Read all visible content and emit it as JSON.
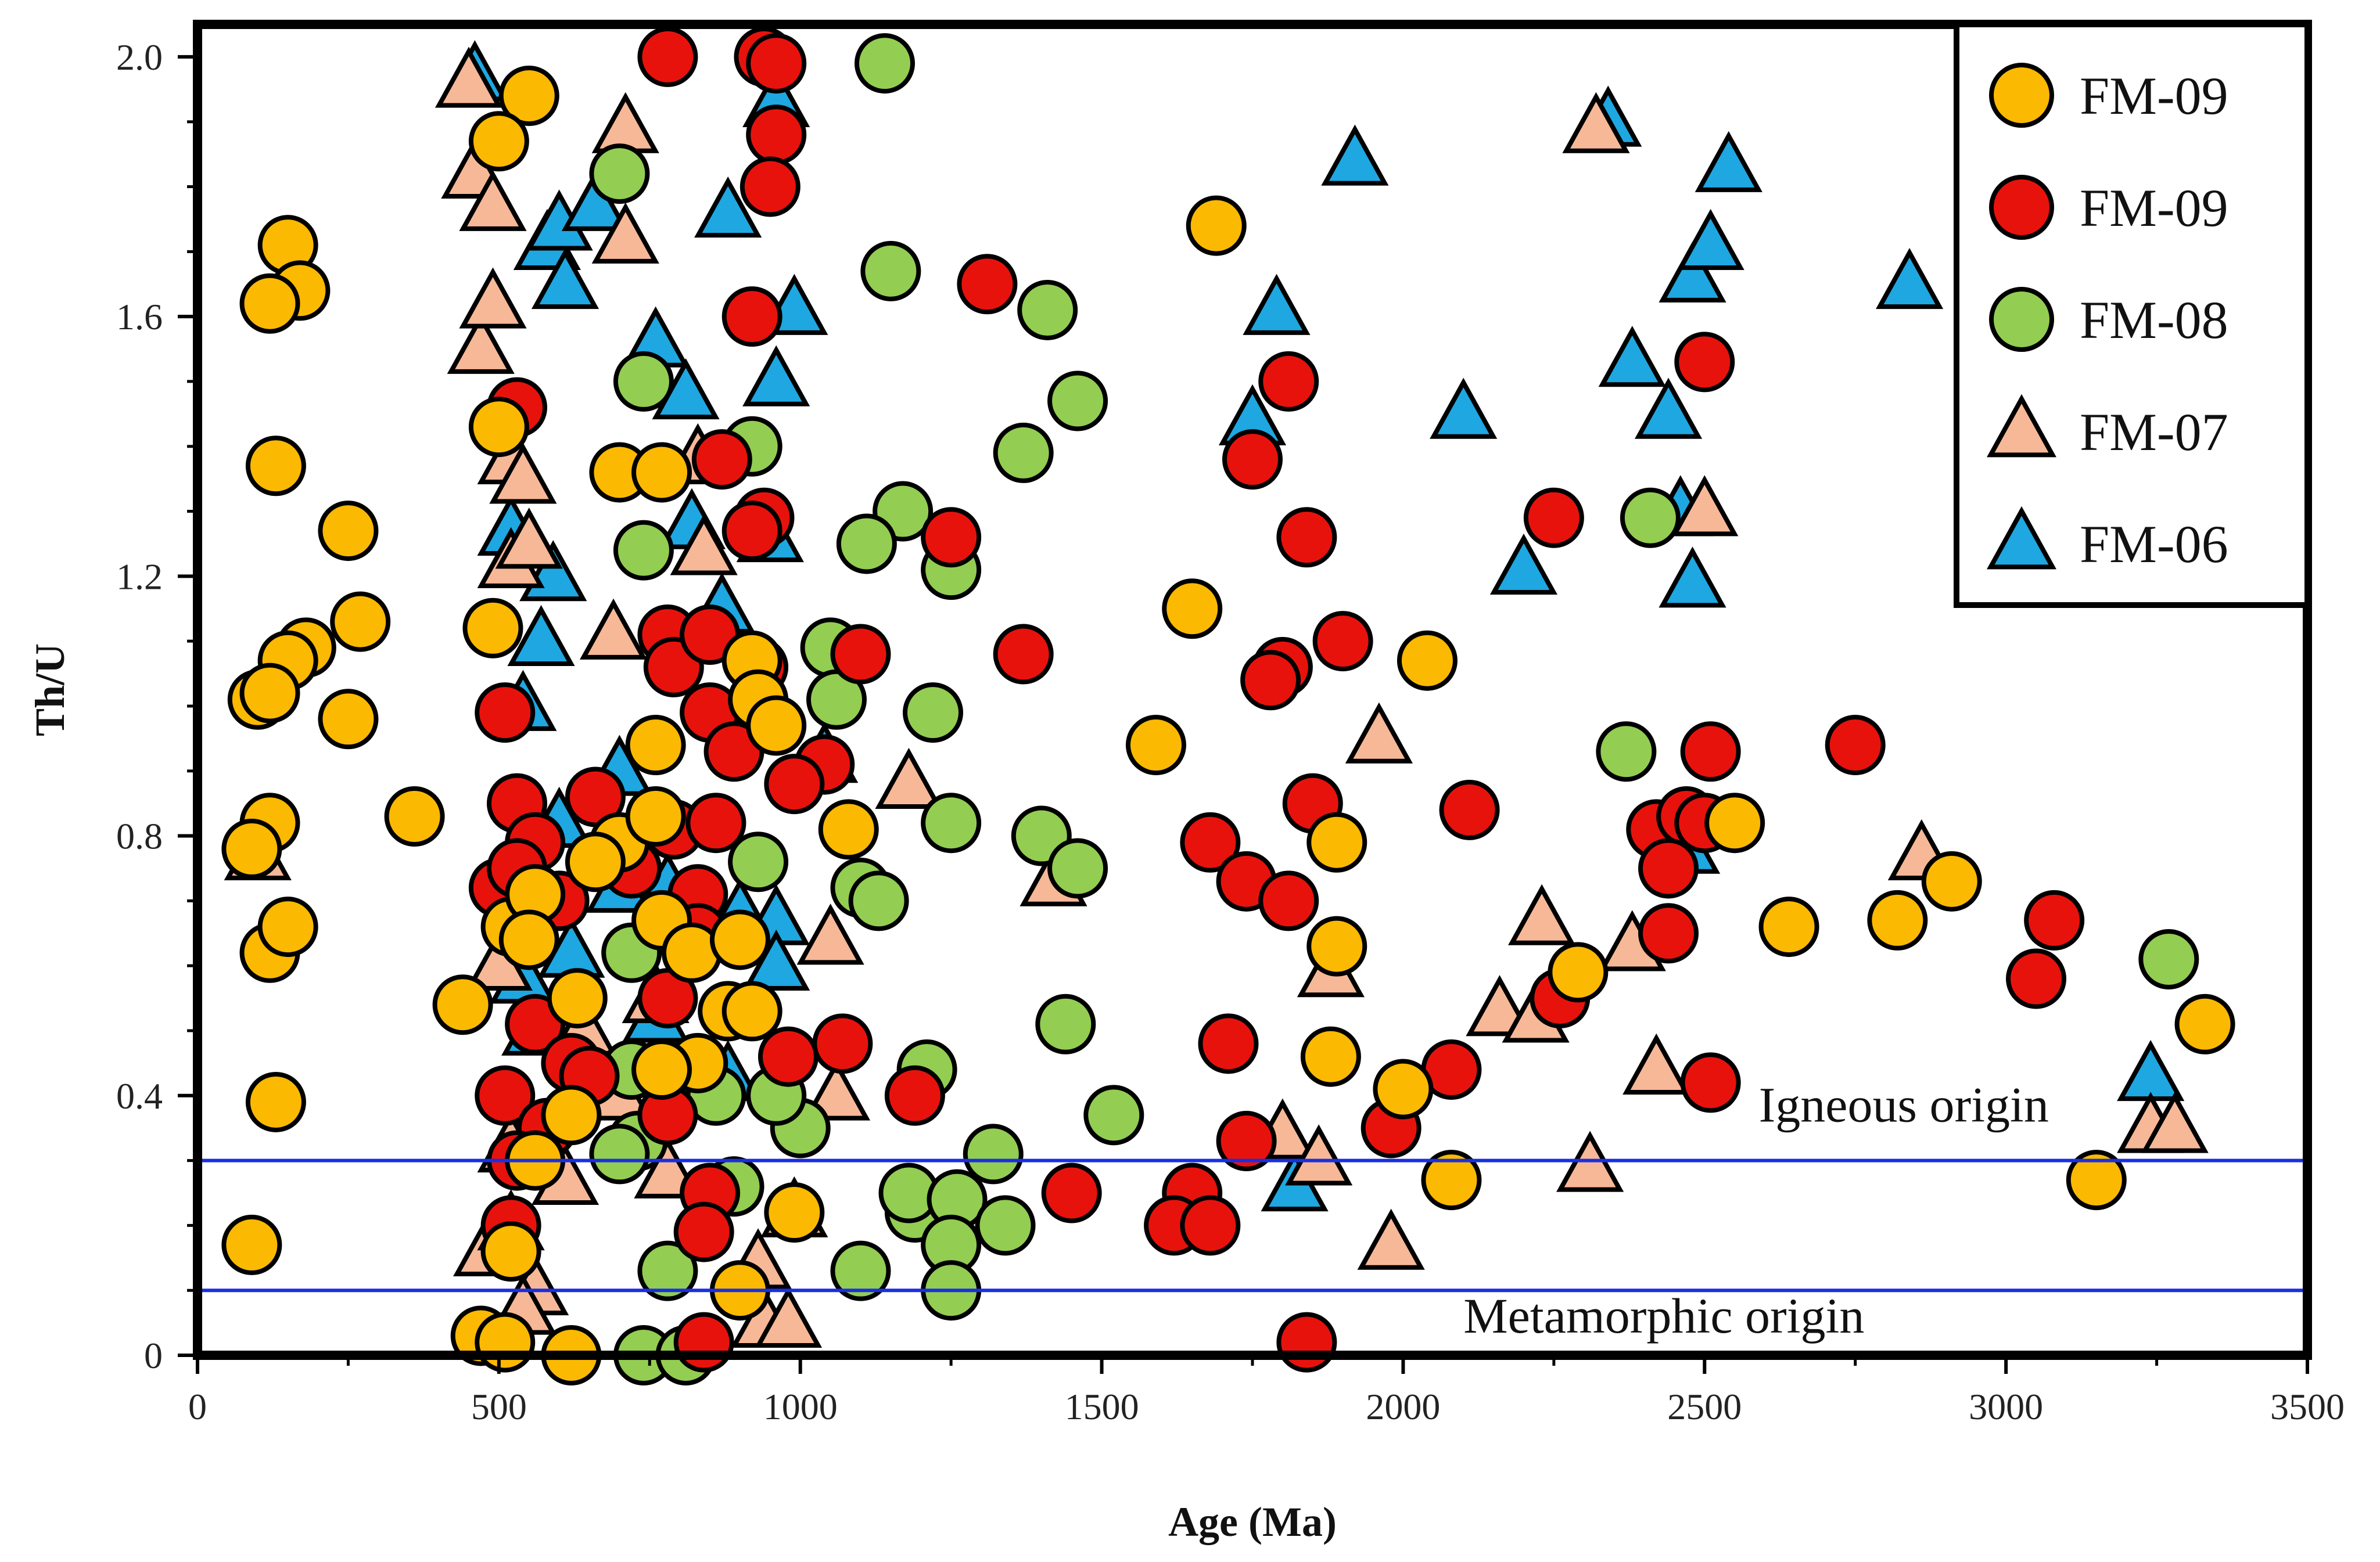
{
  "chart_data": {
    "type": "scatter",
    "title": "",
    "xlabel": "Age (Ma)",
    "ylabel": "Th/U",
    "xlim": [
      0,
      3500
    ],
    "ylim": [
      0,
      2.05
    ],
    "xticks": [
      0,
      500,
      1000,
      1500,
      2000,
      2500,
      3000,
      3500
    ],
    "xtick_labels": [
      "0",
      "500",
      "1000",
      "1500",
      "2000",
      "2500",
      "3000",
      "3500"
    ],
    "yticks": [
      0,
      0.4,
      0.8,
      1.2,
      1.6,
      2.0
    ],
    "ytick_labels": [
      "0",
      "0.4",
      "0.8",
      "1.2",
      "1.6",
      "2.0"
    ],
    "legend_position": "top-right",
    "reference_lines": [
      {
        "y": 0.3,
        "color": "#1a2fe0",
        "label": "Igneous origin"
      },
      {
        "y": 0.1,
        "color": "#1a2fe0",
        "label": "Metamorphic origin"
      }
    ],
    "series": [
      {
        "name": "FM-06",
        "marker": "triangle",
        "color": "#1ea7e1",
        "points": [
          [
            460,
            1.97
          ],
          [
            580,
            1.71
          ],
          [
            600,
            1.74
          ],
          [
            610,
            1.65
          ],
          [
            660,
            1.77
          ],
          [
            760,
            1.56
          ],
          [
            810,
            1.48
          ],
          [
            880,
            1.76
          ],
          [
            960,
            1.5
          ],
          [
            990,
            1.61
          ],
          [
            960,
            1.93
          ],
          [
            1750,
            1.44
          ],
          [
            1790,
            1.61
          ],
          [
            1920,
            1.84
          ],
          [
            2100,
            1.45
          ],
          [
            2200,
            1.21
          ],
          [
            2340,
            1.9
          ],
          [
            2380,
            1.53
          ],
          [
            2440,
            1.45
          ],
          [
            2460,
            1.3
          ],
          [
            2480,
            1.19
          ],
          [
            2480,
            1.66
          ],
          [
            2510,
            1.71
          ],
          [
            2540,
            1.83
          ],
          [
            2840,
            1.65
          ],
          [
            520,
            1.27
          ],
          [
            590,
            1.2
          ],
          [
            570,
            1.1
          ],
          [
            820,
            1.28
          ],
          [
            870,
            1.15
          ],
          [
            950,
            1.26
          ],
          [
            540,
            1.0
          ],
          [
            600,
            0.82
          ],
          [
            700,
            0.9
          ],
          [
            780,
            0.72
          ],
          [
            900,
            0.68
          ],
          [
            960,
            0.67
          ],
          [
            1040,
            0.92
          ],
          [
            540,
            0.58
          ],
          [
            620,
            0.62
          ],
          [
            760,
            0.52
          ],
          [
            880,
            0.43
          ],
          [
            960,
            0.6
          ],
          [
            1820,
            0.26
          ],
          [
            2470,
            0.78
          ],
          [
            3240,
            0.43
          ],
          [
            560,
            0.5
          ],
          [
            700,
            0.72
          ]
        ]
      },
      {
        "name": "FM-07",
        "marker": "triangle",
        "color": "#f7b897",
        "points": [
          [
            450,
            1.96
          ],
          [
            460,
            1.82
          ],
          [
            490,
            1.77
          ],
          [
            470,
            1.55
          ],
          [
            490,
            1.62
          ],
          [
            710,
            1.89
          ],
          [
            710,
            1.72
          ],
          [
            520,
            1.38
          ],
          [
            540,
            1.35
          ],
          [
            520,
            1.22
          ],
          [
            550,
            1.25
          ],
          [
            690,
            1.11
          ],
          [
            840,
            1.24
          ],
          [
            830,
            1.38
          ],
          [
            940,
            1.0
          ],
          [
            1180,
            0.88
          ],
          [
            1050,
            0.64
          ],
          [
            1420,
            0.73
          ],
          [
            1960,
            0.95
          ],
          [
            1800,
            0.34
          ],
          [
            1860,
            0.3
          ],
          [
            1880,
            0.59
          ],
          [
            1980,
            0.17
          ],
          [
            2160,
            0.53
          ],
          [
            2220,
            0.52
          ],
          [
            2230,
            0.67
          ],
          [
            2310,
            0.29
          ],
          [
            2380,
            0.63
          ],
          [
            2420,
            0.44
          ],
          [
            2500,
            1.3
          ],
          [
            2320,
            1.89
          ],
          [
            2860,
            0.77
          ],
          [
            3240,
            0.35
          ],
          [
            3280,
            0.35
          ],
          [
            100,
            0.77
          ],
          [
            480,
            0.16
          ],
          [
            520,
            0.2
          ],
          [
            560,
            0.1
          ],
          [
            540,
            0.07
          ],
          [
            610,
            0.27
          ],
          [
            940,
            0.05
          ],
          [
            980,
            0.05
          ],
          [
            930,
            0.14
          ],
          [
            990,
            0.22
          ],
          [
            500,
            0.6
          ],
          [
            640,
            0.5
          ],
          [
            700,
            0.4
          ],
          [
            760,
            0.55
          ],
          [
            1060,
            0.4
          ],
          [
            520,
            0.32
          ],
          [
            780,
            0.28
          ]
        ]
      },
      {
        "name": "FM-08",
        "marker": "circle",
        "color": "#93cd52",
        "points": [
          [
            1140,
            1.99
          ],
          [
            700,
            1.82
          ],
          [
            1150,
            1.67
          ],
          [
            1410,
            1.61
          ],
          [
            740,
            1.5
          ],
          [
            1370,
            1.39
          ],
          [
            1460,
            1.47
          ],
          [
            920,
            1.4
          ],
          [
            1170,
            1.3
          ],
          [
            1110,
            1.25
          ],
          [
            1250,
            1.21
          ],
          [
            2410,
            1.29
          ],
          [
            740,
            1.24
          ],
          [
            1050,
            1.09
          ],
          [
            1060,
            1.01
          ],
          [
            1220,
            0.99
          ],
          [
            2370,
            0.93
          ],
          [
            1250,
            0.82
          ],
          [
            1400,
            0.8
          ],
          [
            1460,
            0.75
          ],
          [
            930,
            0.76
          ],
          [
            1100,
            0.72
          ],
          [
            1130,
            0.7
          ],
          [
            3270,
            0.61
          ],
          [
            1440,
            0.51
          ],
          [
            1210,
            0.44
          ],
          [
            1520,
            0.37
          ],
          [
            1000,
            0.35
          ],
          [
            1100,
            0.13
          ],
          [
            1190,
            0.22
          ],
          [
            1180,
            0.25
          ],
          [
            1260,
            0.24
          ],
          [
            1320,
            0.31
          ],
          [
            1340,
            0.2
          ],
          [
            1250,
            0.17
          ],
          [
            1250,
            0.1
          ],
          [
            780,
            0.13
          ],
          [
            740,
            0.0
          ],
          [
            810,
            0.0
          ],
          [
            730,
            0.33
          ],
          [
            860,
            0.4
          ],
          [
            890,
            0.26
          ],
          [
            720,
            0.62
          ],
          [
            700,
            0.31
          ],
          [
            720,
            0.44
          ],
          [
            960,
            0.4
          ]
        ]
      },
      {
        "name": "FM-09 (red)",
        "marker": "circle",
        "color": "#e8120d",
        "points": [
          [
            780,
            2.0
          ],
          [
            940,
            2.0
          ],
          [
            960,
            1.99
          ],
          [
            960,
            1.88
          ],
          [
            950,
            1.8
          ],
          [
            920,
            1.6
          ],
          [
            1310,
            1.65
          ],
          [
            530,
            1.46
          ],
          [
            870,
            1.38
          ],
          [
            940,
            1.29
          ],
          [
            920,
            1.27
          ],
          [
            1250,
            1.26
          ],
          [
            1750,
            1.38
          ],
          [
            1810,
            1.5
          ],
          [
            1840,
            1.26
          ],
          [
            2250,
            1.29
          ],
          [
            2500,
            1.53
          ],
          [
            780,
            1.11
          ],
          [
            790,
            1.06
          ],
          [
            850,
            1.11
          ],
          [
            930,
            1.06
          ],
          [
            1100,
            1.08
          ],
          [
            1370,
            1.08
          ],
          [
            1800,
            1.06
          ],
          [
            1780,
            1.04
          ],
          [
            1900,
            1.1
          ],
          [
            2110,
            0.84
          ],
          [
            1850,
            0.85
          ],
          [
            2510,
            0.93
          ],
          [
            2750,
            0.94
          ],
          [
            510,
            0.99
          ],
          [
            850,
            0.99
          ],
          [
            890,
            0.93
          ],
          [
            1040,
            0.91
          ],
          [
            990,
            0.88
          ],
          [
            530,
            0.85
          ],
          [
            660,
            0.86
          ],
          [
            790,
            0.81
          ],
          [
            860,
            0.82
          ],
          [
            560,
            0.79
          ],
          [
            500,
            0.72
          ],
          [
            530,
            0.75
          ],
          [
            600,
            0.7
          ],
          [
            720,
            0.75
          ],
          [
            830,
            0.71
          ],
          [
            1680,
            0.79
          ],
          [
            1740,
            0.73
          ],
          [
            1810,
            0.7
          ],
          [
            2420,
            0.81
          ],
          [
            2470,
            0.83
          ],
          [
            2440,
            0.75
          ],
          [
            2500,
            0.82
          ],
          [
            3080,
            0.67
          ],
          [
            3050,
            0.58
          ],
          [
            2440,
            0.65
          ],
          [
            2260,
            0.55
          ],
          [
            2080,
            0.44
          ],
          [
            1980,
            0.35
          ],
          [
            1710,
            0.48
          ],
          [
            1740,
            0.33
          ],
          [
            1190,
            0.4
          ],
          [
            1070,
            0.48
          ],
          [
            980,
            0.46
          ],
          [
            780,
            0.55
          ],
          [
            830,
            0.65
          ],
          [
            560,
            0.51
          ],
          [
            510,
            0.4
          ],
          [
            620,
            0.45
          ],
          [
            650,
            0.43
          ],
          [
            580,
            0.35
          ],
          [
            780,
            0.37
          ],
          [
            850,
            0.25
          ],
          [
            840,
            0.19
          ],
          [
            1450,
            0.25
          ],
          [
            1650,
            0.25
          ],
          [
            1620,
            0.2
          ],
          [
            1680,
            0.2
          ],
          [
            2510,
            0.42
          ],
          [
            520,
            0.2
          ],
          [
            530,
            0.3
          ],
          [
            840,
            0.02
          ],
          [
            1840,
            0.02
          ]
        ]
      },
      {
        "name": "FM-09 (yellow)",
        "marker": "circle",
        "color": "#fbb901",
        "points": [
          [
            550,
            1.94
          ],
          [
            500,
            1.87
          ],
          [
            150,
            1.71
          ],
          [
            170,
            1.64
          ],
          [
            120,
            1.62
          ],
          [
            130,
            1.37
          ],
          [
            250,
            1.27
          ],
          [
            270,
            1.13
          ],
          [
            180,
            1.09
          ],
          [
            150,
            1.07
          ],
          [
            100,
            1.01
          ],
          [
            120,
            1.02
          ],
          [
            250,
            0.98
          ],
          [
            120,
            0.82
          ],
          [
            90,
            0.78
          ],
          [
            360,
            0.83
          ],
          [
            700,
            1.36
          ],
          [
            770,
            1.36
          ],
          [
            500,
            1.43
          ],
          [
            490,
            1.12
          ],
          [
            1690,
            1.74
          ],
          [
            1650,
            1.15
          ],
          [
            2040,
            1.07
          ],
          [
            1590,
            0.94
          ],
          [
            760,
            0.94
          ],
          [
            920,
            1.07
          ],
          [
            930,
            1.01
          ],
          [
            960,
            0.97
          ],
          [
            1080,
            0.81
          ],
          [
            700,
            0.79
          ],
          [
            760,
            0.83
          ],
          [
            520,
            0.66
          ],
          [
            560,
            0.71
          ],
          [
            550,
            0.64
          ],
          [
            660,
            0.76
          ],
          [
            770,
            0.67
          ],
          [
            820,
            0.62
          ],
          [
            900,
            0.64
          ],
          [
            880,
            0.53
          ],
          [
            920,
            0.53
          ],
          [
            630,
            0.55
          ],
          [
            440,
            0.54
          ],
          [
            830,
            0.45
          ],
          [
            770,
            0.44
          ],
          [
            620,
            0.37
          ],
          [
            560,
            0.3
          ],
          [
            1890,
            0.79
          ],
          [
            1890,
            0.63
          ],
          [
            1880,
            0.46
          ],
          [
            2000,
            0.41
          ],
          [
            2080,
            0.27
          ],
          [
            2290,
            0.59
          ],
          [
            2550,
            0.82
          ],
          [
            2640,
            0.66
          ],
          [
            2820,
            0.67
          ],
          [
            2910,
            0.73
          ],
          [
            3150,
            0.27
          ],
          [
            3330,
            0.51
          ],
          [
            120,
            0.62
          ],
          [
            150,
            0.66
          ],
          [
            130,
            0.39
          ],
          [
            90,
            0.17
          ],
          [
            520,
            0.16
          ],
          [
            470,
            0.03
          ],
          [
            510,
            0.02
          ],
          [
            620,
            0.0
          ],
          [
            900,
            0.1
          ],
          [
            990,
            0.22
          ]
        ]
      }
    ],
    "legend": [
      {
        "label": "FM-09",
        "marker": "circle",
        "color": "#fbb901"
      },
      {
        "label": "FM-09",
        "marker": "circle",
        "color": "#e8120d"
      },
      {
        "label": "FM-08",
        "marker": "circle",
        "color": "#93cd52"
      },
      {
        "label": "FM-07",
        "marker": "triangle",
        "color": "#f7b897"
      },
      {
        "label": "FM-06",
        "marker": "triangle",
        "color": "#1ea7e1"
      }
    ]
  }
}
